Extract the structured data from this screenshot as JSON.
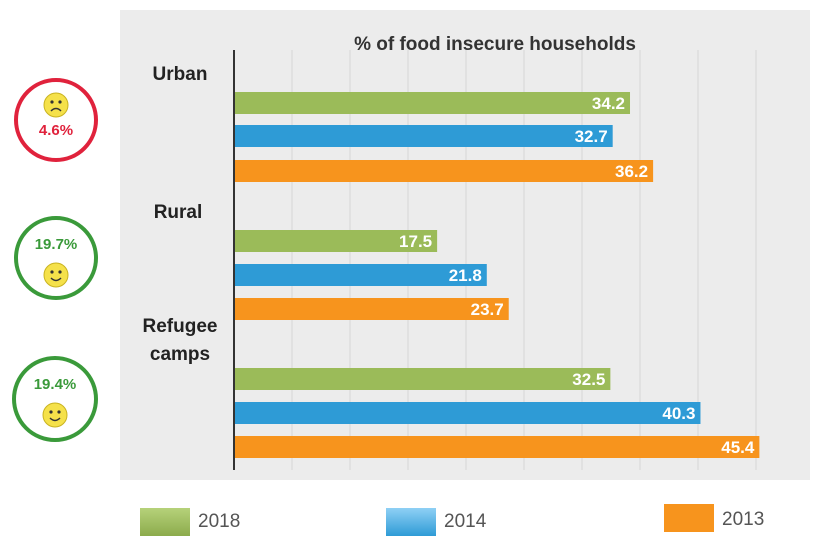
{
  "chart_data": {
    "type": "bar",
    "orientation": "horizontal",
    "title": "% of food insecure households",
    "categories": [
      "Urban",
      "Rural",
      "Refugee camps"
    ],
    "series": [
      {
        "name": "2018",
        "color": "#9bbb59",
        "values": [
          34.2,
          17.5,
          32.5
        ]
      },
      {
        "name": "2014",
        "color": "#2e9bd6",
        "values": [
          32.7,
          21.8,
          40.3
        ]
      },
      {
        "name": "2013",
        "color": "#f7941d",
        "values": [
          36.2,
          23.7,
          45.4
        ]
      }
    ],
    "xlim": [
      0,
      50
    ],
    "grid": true,
    "legend_position": "bottom"
  },
  "badges": [
    {
      "value": "4.6%",
      "mood": "sad",
      "color": "#e0223c"
    },
    {
      "value": "19.7%",
      "mood": "happy",
      "color": "#3a9a3a"
    },
    {
      "value": "19.4%",
      "mood": "happy",
      "color": "#3a9a3a"
    }
  ],
  "legend": {
    "items": [
      "2018",
      "2014",
      "2013"
    ]
  }
}
